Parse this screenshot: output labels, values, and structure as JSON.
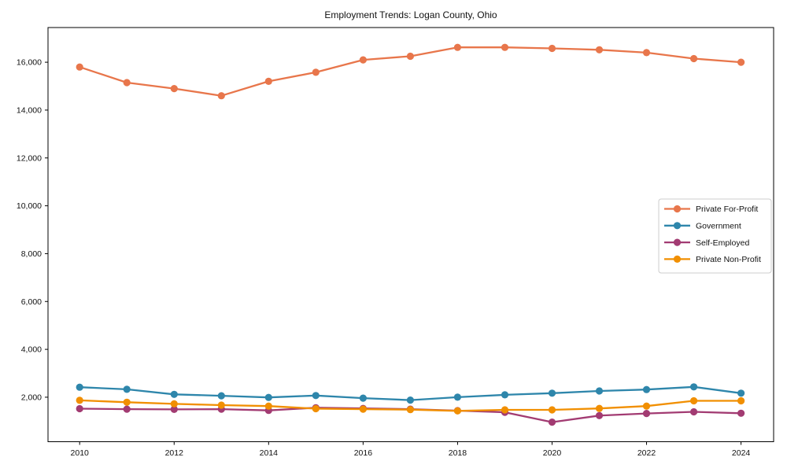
{
  "figure": {
    "title": "Employment Trends: Logan County, Ohio",
    "background_color": "#ffffff",
    "axis_color": "#000000",
    "text_color": "#111111"
  },
  "chart_data": {
    "type": "line",
    "title": "Employment Trends: Logan County, Ohio",
    "xlabel": "",
    "ylabel": "",
    "grid": false,
    "legend_position": "right-middle",
    "marker": "circle",
    "x": [
      2010,
      2011,
      2012,
      2013,
      2014,
      2015,
      2016,
      2017,
      2018,
      2019,
      2020,
      2021,
      2022,
      2023,
      2024
    ],
    "series": [
      {
        "name": "Private For-Profit",
        "color": "#E8764B",
        "values": [
          15800,
          15150,
          14900,
          14600,
          15200,
          15580,
          16100,
          16250,
          16620,
          16620,
          16580,
          16520,
          16400,
          16150,
          16000
        ]
      },
      {
        "name": "Government",
        "color": "#2E86AB",
        "values": [
          2420,
          2330,
          2120,
          2060,
          1990,
          2070,
          1960,
          1880,
          2000,
          2100,
          2170,
          2260,
          2320,
          2430,
          2170
        ]
      },
      {
        "name": "Self-Employed",
        "color": "#A23B72",
        "values": [
          1520,
          1500,
          1490,
          1500,
          1450,
          1560,
          1530,
          1500,
          1440,
          1370,
          960,
          1230,
          1320,
          1390,
          1330
        ]
      },
      {
        "name": "Private Non-Profit",
        "color": "#F18F01",
        "values": [
          1870,
          1790,
          1720,
          1670,
          1630,
          1520,
          1500,
          1480,
          1430,
          1470,
          1470,
          1530,
          1630,
          1850,
          1850
        ]
      }
    ],
    "xticks": [
      2010,
      2012,
      2014,
      2016,
      2018,
      2020,
      2022,
      2024
    ],
    "yticks": [
      2000,
      4000,
      6000,
      8000,
      10000,
      12000,
      14000,
      16000
    ],
    "ytick_labels": [
      "2,000",
      "4,000",
      "6,000",
      "8,000",
      "10,000",
      "12,000",
      "14,000",
      "16,000"
    ],
    "xlim": [
      2009.33,
      2024.69
    ],
    "ylim": [
      140,
      17450
    ]
  }
}
